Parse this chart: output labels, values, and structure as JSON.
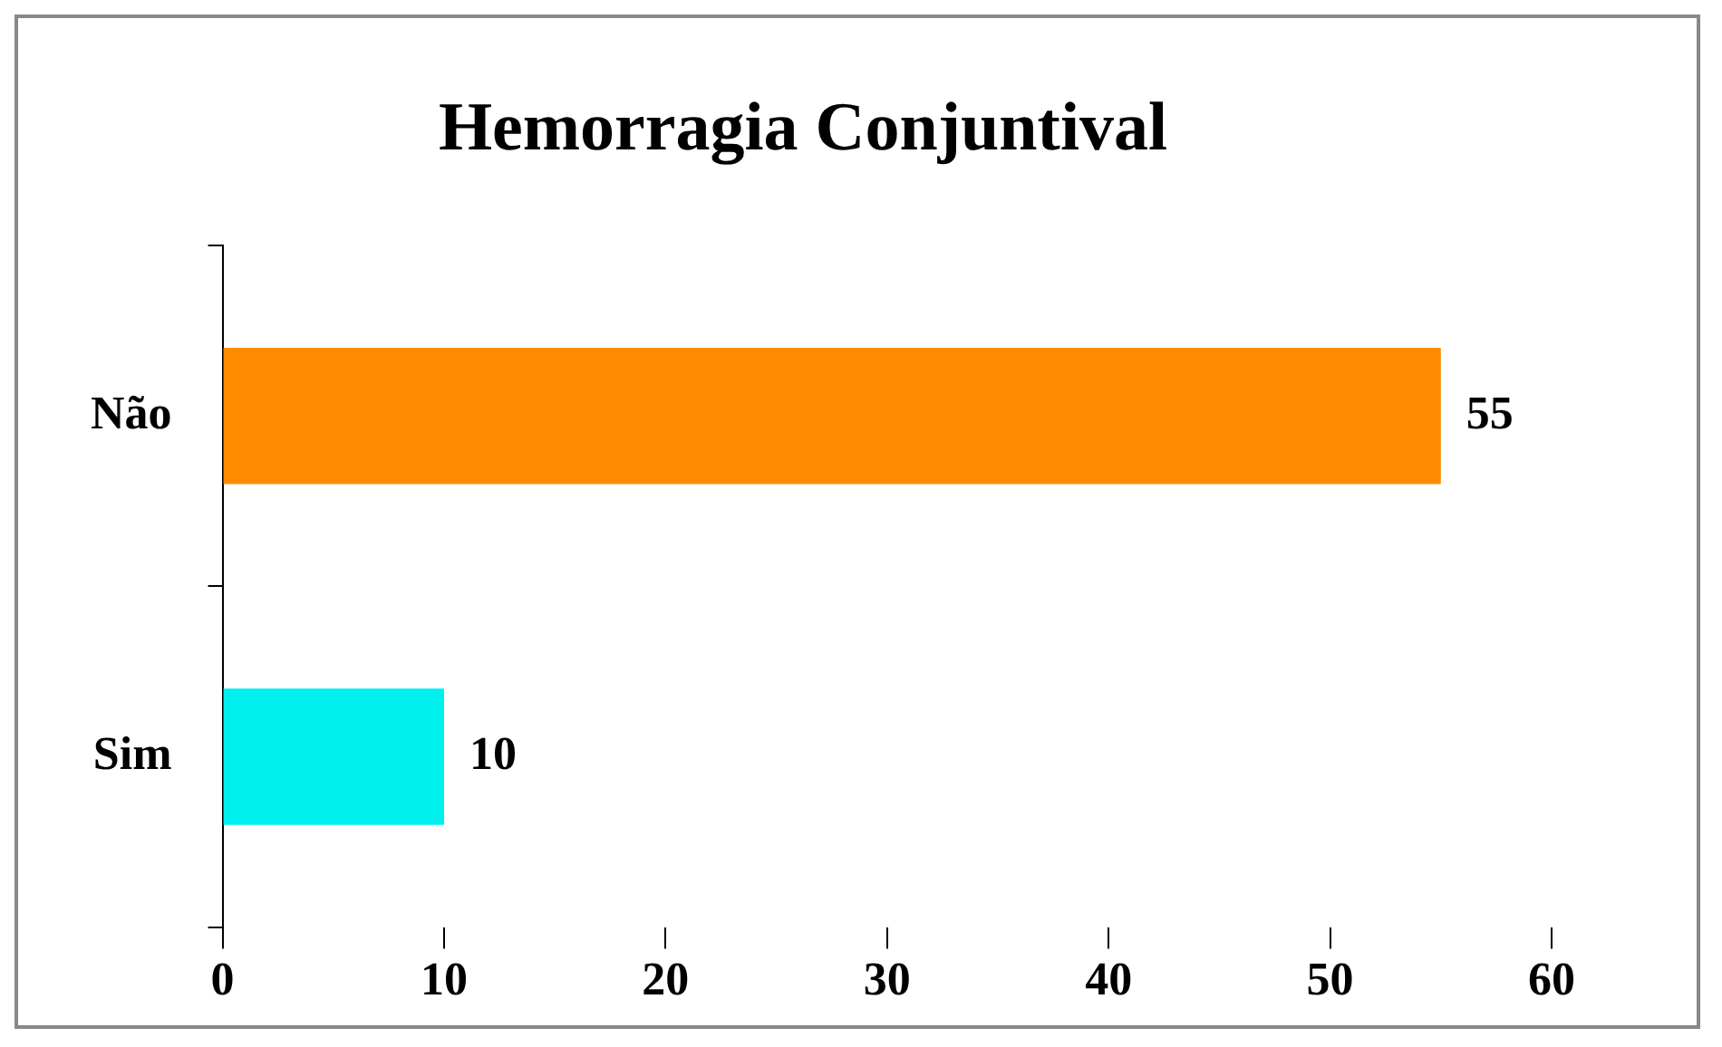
{
  "chart_data": {
    "type": "bar",
    "orientation": "horizontal",
    "title": "Hemorragia Conjuntival",
    "categories": [
      "Não",
      "Sim"
    ],
    "values": [
      55,
      10
    ],
    "colors": [
      "#ff8c00",
      "#00f0f0"
    ],
    "xlim": [
      0,
      60
    ],
    "xticks": [
      0,
      10,
      20,
      30,
      40,
      50,
      60
    ],
    "data_labels": true,
    "grid": false,
    "legend": false
  }
}
